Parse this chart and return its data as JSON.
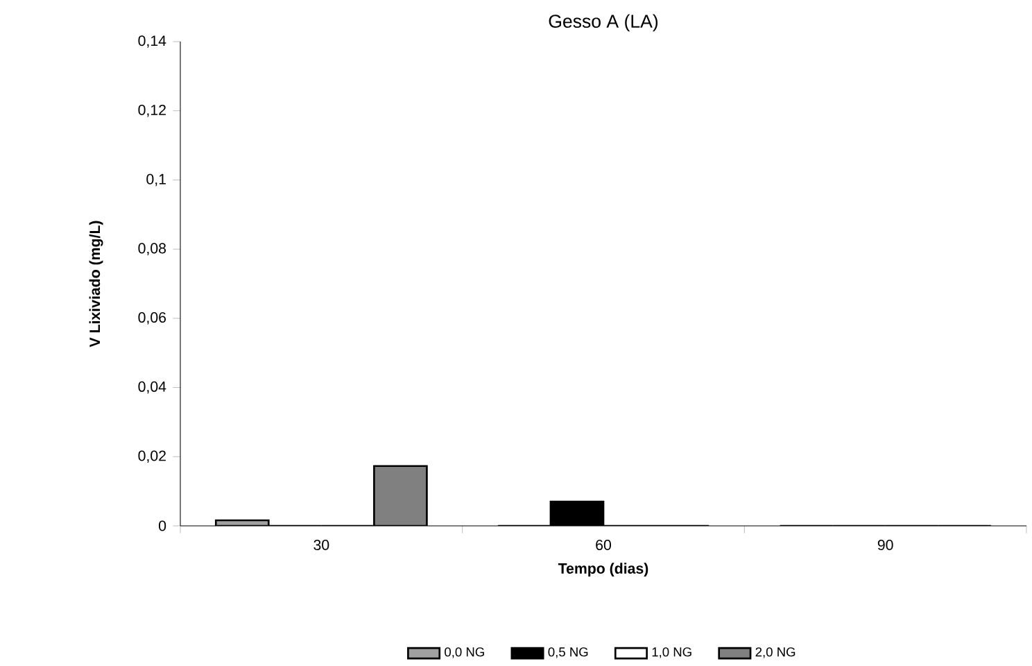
{
  "chart_data": {
    "type": "bar",
    "title": "Gesso A (LA)",
    "xlabel": "Tempo (dias)",
    "ylabel": "V Lixiviado (mg/L)",
    "categories": [
      "30",
      "60",
      "90"
    ],
    "series": [
      {
        "name": "0,0 NG",
        "color": "#a0a0a0",
        "values": [
          0.0016,
          0,
          0
        ]
      },
      {
        "name": "0,5 NG",
        "color": "#000000",
        "values": [
          0,
          0.007,
          0
        ]
      },
      {
        "name": "1,0 NG",
        "color": "#ffffff",
        "values": [
          0,
          0,
          0
        ]
      },
      {
        "name": "2,0 NG",
        "color": "#808080",
        "values": [
          0.0173,
          0,
          0
        ]
      }
    ],
    "ylim": [
      0,
      0.14
    ],
    "yticks": [
      {
        "value": 0,
        "label": "0"
      },
      {
        "value": 0.02,
        "label": "0,02"
      },
      {
        "value": 0.04,
        "label": "0,04"
      },
      {
        "value": 0.06,
        "label": "0,06"
      },
      {
        "value": 0.08,
        "label": "0,08"
      },
      {
        "value": 0.1,
        "label": "0,1"
      },
      {
        "value": 0.12,
        "label": "0,12"
      },
      {
        "value": 0.14,
        "label": "0,14"
      }
    ],
    "legend": "bottom",
    "grid": false
  }
}
